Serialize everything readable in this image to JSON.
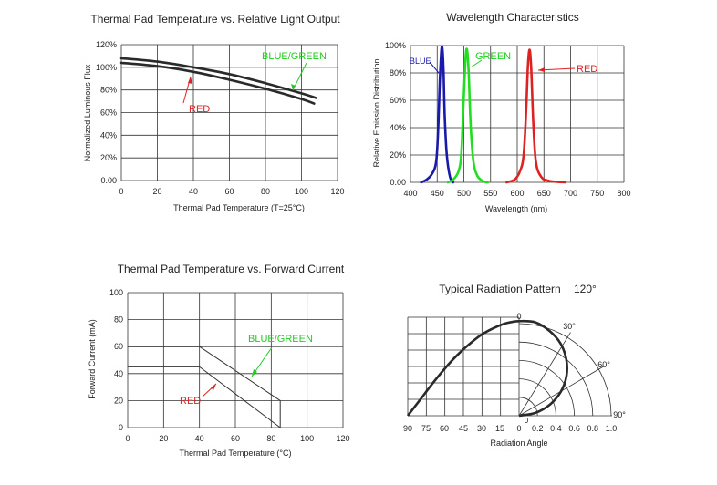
{
  "chart_data": [
    {
      "type": "line",
      "title": "Thermal Pad Temperature vs. Relative Light Output",
      "xlabel": "Thermal Pad Temperature (T=25°C)",
      "ylabel": "Normalized Luminous Flux",
      "xlim": [
        0,
        120
      ],
      "ylim": [
        0,
        120
      ],
      "grid": true,
      "x_ticks": [
        "0",
        "20",
        "40",
        "60",
        "80",
        "100",
        "120"
      ],
      "y_ticks": [
        "0.00",
        "20%",
        "40%",
        "60%",
        "80%",
        "100%",
        "120%"
      ],
      "series": [
        {
          "name": "BLUE/GREEN",
          "color": "#2a2a2a",
          "x": [
            0,
            20,
            40,
            60,
            80,
            100,
            108
          ],
          "y": [
            108,
            105,
            100,
            94,
            86,
            77,
            73
          ]
        },
        {
          "name": "RED",
          "color": "#2a2a2a",
          "x": [
            0,
            20,
            40,
            60,
            80,
            100,
            107
          ],
          "y": [
            104,
            101,
            96,
            89,
            81,
            72,
            68
          ]
        }
      ],
      "annotations": [
        {
          "text": "BLUE/GREEN",
          "color": "#22cc22"
        },
        {
          "text": "RED",
          "color": "#dd2222"
        }
      ]
    },
    {
      "type": "line",
      "title": "Wavelength Characteristics",
      "xlabel": "Wavelength (nm)",
      "ylabel": "Relative Emission Distribution",
      "xlim": [
        400,
        800
      ],
      "ylim": [
        0,
        100
      ],
      "grid": true,
      "x_ticks": [
        "400",
        "450",
        "500",
        "550",
        "600",
        "650",
        "700",
        "750",
        "800"
      ],
      "y_ticks": [
        "0.00",
        "20%",
        "40%",
        "60%",
        "80%",
        "100%"
      ],
      "series": [
        {
          "name": "BLUE",
          "color": "#1a1aaa",
          "x": [
            420,
            430,
            440,
            448,
            452,
            455,
            458,
            460,
            462,
            464,
            468,
            474,
            480
          ],
          "y": [
            0,
            2,
            6,
            15,
            40,
            75,
            97,
            97,
            80,
            50,
            20,
            4,
            0
          ]
        },
        {
          "name": "GREEN",
          "color": "#22dd22",
          "x": [
            470,
            480,
            490,
            495,
            499,
            503,
            506,
            509,
            513,
            518,
            525,
            535,
            545
          ],
          "y": [
            0,
            2,
            8,
            20,
            55,
            90,
            97,
            80,
            40,
            15,
            5,
            1,
            0
          ]
        },
        {
          "name": "RED",
          "color": "#dd2222",
          "x": [
            580,
            595,
            605,
            612,
            617,
            620,
            623,
            626,
            630,
            635,
            645,
            660,
            690
          ],
          "y": [
            0,
            2,
            8,
            20,
            55,
            85,
            97,
            85,
            45,
            15,
            4,
            1,
            0
          ]
        }
      ],
      "annotations": [
        {
          "text": "BLUE",
          "color": "#1a1aaa"
        },
        {
          "text": "GREEN",
          "color": "#22cc22"
        },
        {
          "text": "RED",
          "color": "#dd2222"
        }
      ]
    },
    {
      "type": "line",
      "title": "Thermal Pad Temperature vs. Forward Current",
      "xlabel": "Thermal Pad Temperature (°C)",
      "ylabel": "Forward Current (mA)",
      "xlim": [
        0,
        120
      ],
      "ylim": [
        0,
        100
      ],
      "grid": true,
      "x_ticks": [
        "0",
        "20",
        "40",
        "60",
        "80",
        "100",
        "120"
      ],
      "y_ticks": [
        "0",
        "20",
        "40",
        "60",
        "80",
        "100"
      ],
      "series": [
        {
          "name": "BLUE/GREEN",
          "color": "#333333",
          "x": [
            0,
            40,
            85,
            85
          ],
          "y": [
            60,
            60,
            20,
            0
          ]
        },
        {
          "name": "RED",
          "color": "#333333",
          "x": [
            0,
            40,
            85
          ],
          "y": [
            45,
            45,
            0
          ]
        }
      ],
      "annotations": [
        {
          "text": "BLUE/GREEN",
          "color": "#22cc22"
        },
        {
          "text": "RED",
          "color": "#dd2222"
        }
      ]
    },
    {
      "type": "polar",
      "title": "Typical Radiation Pattern",
      "title_angle": "120°",
      "xlabel": "Radiation Angle",
      "angle_ticks": [
        "90",
        "75",
        "60",
        "45",
        "30",
        "15",
        "0"
      ],
      "radius_ticks": [
        "0.2",
        "0.4",
        "0.6",
        "0.8",
        "1.0"
      ],
      "radial_labels": [
        "0",
        "30°",
        "60°",
        "90°"
      ],
      "center_label": "0",
      "pattern": {
        "angle_deg": [
          0,
          10,
          20,
          30,
          40,
          50,
          60,
          70,
          80,
          90
        ],
        "relative_intensity": [
          1.0,
          0.98,
          0.93,
          0.86,
          0.76,
          0.64,
          0.5,
          0.34,
          0.17,
          0.0
        ]
      }
    }
  ]
}
